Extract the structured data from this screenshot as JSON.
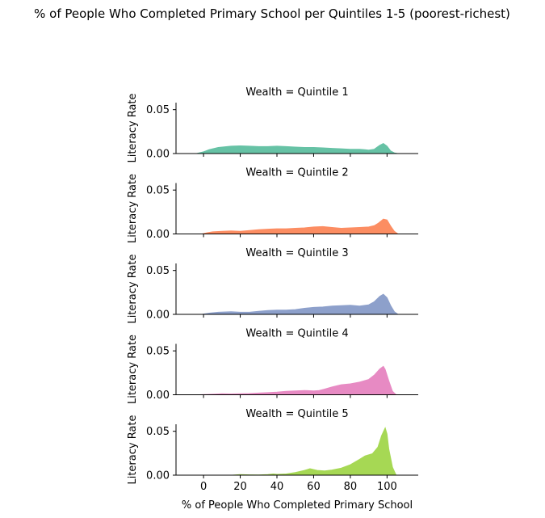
{
  "title": "% of People Who Completed Primary School per Quintiles 1-5 (poorest-richest)",
  "xlabel": "% of People Who Completed Primary School",
  "ylabel": "Literacy Rate",
  "chart_data": {
    "type": "area",
    "title": "% of People Who Completed Primary School per Quintiles 1-5 (poorest-richest)",
    "xlabel": "% of People Who Completed Primary School",
    "ylabel": "Literacy Rate",
    "xlim": [
      -15,
      117
    ],
    "ylim": [
      0,
      0.058
    ],
    "xticks": [
      0,
      20,
      40,
      60,
      80,
      100
    ],
    "yticks": [
      0.0,
      0.05
    ],
    "ytick_labels": [
      "0.00",
      "0.05"
    ],
    "grid": false,
    "legend": "none",
    "panels": [
      {
        "label": "Wealth = Quintile 1",
        "color": "#66c2a5",
        "x": [
          -4,
          0,
          3,
          8,
          15,
          20,
          25,
          30,
          35,
          40,
          45,
          50,
          55,
          60,
          65,
          70,
          75,
          80,
          85,
          88,
          90,
          93,
          96,
          98,
          100,
          102,
          104,
          106
        ],
        "y": [
          0,
          0.002,
          0.0045,
          0.007,
          0.0085,
          0.0088,
          0.0085,
          0.008,
          0.008,
          0.0085,
          0.008,
          0.0075,
          0.007,
          0.007,
          0.0065,
          0.006,
          0.0055,
          0.005,
          0.005,
          0.0045,
          0.004,
          0.005,
          0.0095,
          0.0115,
          0.0085,
          0.003,
          0.0008,
          0
        ]
      },
      {
        "label": "Wealth = Quintile 2",
        "color": "#fc8d62",
        "x": [
          -1,
          2,
          5,
          10,
          15,
          20,
          25,
          30,
          35,
          40,
          45,
          50,
          55,
          60,
          65,
          70,
          75,
          80,
          85,
          90,
          93,
          95,
          98,
          100,
          102,
          104,
          106
        ],
        "y": [
          0,
          0.0015,
          0.0025,
          0.003,
          0.0035,
          0.003,
          0.004,
          0.005,
          0.0055,
          0.006,
          0.006,
          0.0065,
          0.007,
          0.008,
          0.0085,
          0.0075,
          0.0065,
          0.007,
          0.0075,
          0.008,
          0.0095,
          0.012,
          0.017,
          0.016,
          0.009,
          0.003,
          0
        ]
      },
      {
        "label": "Wealth = Quintile 3",
        "color": "#8da0cb",
        "x": [
          -1,
          3,
          8,
          15,
          20,
          25,
          30,
          35,
          40,
          45,
          50,
          55,
          60,
          65,
          70,
          75,
          80,
          85,
          90,
          93,
          96,
          98,
          100,
          102,
          104,
          106
        ],
        "y": [
          0,
          0.0015,
          0.0025,
          0.003,
          0.0025,
          0.0025,
          0.0035,
          0.0045,
          0.005,
          0.005,
          0.0055,
          0.007,
          0.008,
          0.0085,
          0.0095,
          0.01,
          0.0105,
          0.0095,
          0.011,
          0.0145,
          0.0205,
          0.023,
          0.019,
          0.01,
          0.003,
          0
        ]
      },
      {
        "label": "Wealth = Quintile 4",
        "color": "#e78ac3",
        "x": [
          -3,
          2,
          6,
          10,
          15,
          20,
          25,
          30,
          35,
          40,
          45,
          50,
          55,
          60,
          63,
          66,
          70,
          75,
          80,
          85,
          90,
          93,
          96,
          98,
          99,
          101,
          103,
          105
        ],
        "y": [
          0,
          0.0005,
          0.0008,
          0.0012,
          0.001,
          0.0012,
          0.0015,
          0.002,
          0.0025,
          0.003,
          0.004,
          0.0045,
          0.005,
          0.0045,
          0.005,
          0.0065,
          0.009,
          0.0115,
          0.0125,
          0.0145,
          0.0175,
          0.0225,
          0.0295,
          0.0325,
          0.029,
          0.016,
          0.004,
          0
        ]
      },
      {
        "label": "Wealth = Quintile 5",
        "color": "#a6d854",
        "x": [
          15,
          20,
          25,
          30,
          35,
          38,
          40,
          45,
          50,
          55,
          58,
          62,
          66,
          70,
          75,
          80,
          85,
          88,
          92,
          95,
          97,
          99,
          100,
          101,
          103,
          105
        ],
        "y": [
          0,
          0.0008,
          0.0005,
          0.0003,
          0.0008,
          0.0015,
          0.001,
          0.0015,
          0.003,
          0.0055,
          0.0075,
          0.0055,
          0.005,
          0.006,
          0.008,
          0.012,
          0.018,
          0.022,
          0.0245,
          0.032,
          0.045,
          0.054,
          0.047,
          0.03,
          0.009,
          0
        ]
      }
    ]
  }
}
